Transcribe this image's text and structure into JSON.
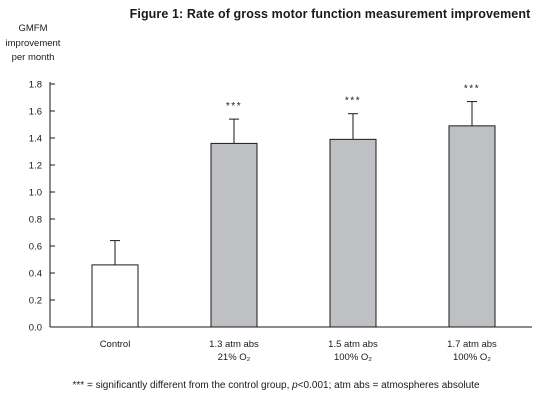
{
  "chart_data": {
    "type": "bar",
    "title": "Figure 1: Rate of gross motor function measurement improvement",
    "ylabel_lines": [
      "GMFM",
      "improvement",
      "per month"
    ],
    "categories": [
      {
        "lines": [
          "Control"
        ],
        "value": 0.46,
        "error": 0.18,
        "significance": "",
        "fill": "#ffffff"
      },
      {
        "lines": [
          "1.3 atm abs",
          "21% O₂"
        ],
        "value": 1.36,
        "error": 0.18,
        "significance": "***",
        "fill": "#bfc0c3"
      },
      {
        "lines": [
          "1.5 atm abs",
          "100% O₂"
        ],
        "value": 1.39,
        "error": 0.19,
        "significance": "***",
        "fill": "#bfc0c3"
      },
      {
        "lines": [
          "1.7 atm abs",
          "100% O₂"
        ],
        "value": 1.49,
        "error": 0.18,
        "significance": "***",
        "fill": "#bfc0c3"
      }
    ],
    "yticks": [
      "0.0",
      "0.2",
      "0.4",
      "0.6",
      "0.8",
      "1.0",
      "1.2",
      "1.4",
      "1.6",
      "1.8"
    ],
    "ylim": [
      0,
      1.8
    ],
    "grid": false
  },
  "footnote": {
    "stars": "***",
    "part1": " = significantly different from the control group, ",
    "p_italic": "p",
    "part2": "<0.001;  atm abs = atmospheres absolute"
  }
}
